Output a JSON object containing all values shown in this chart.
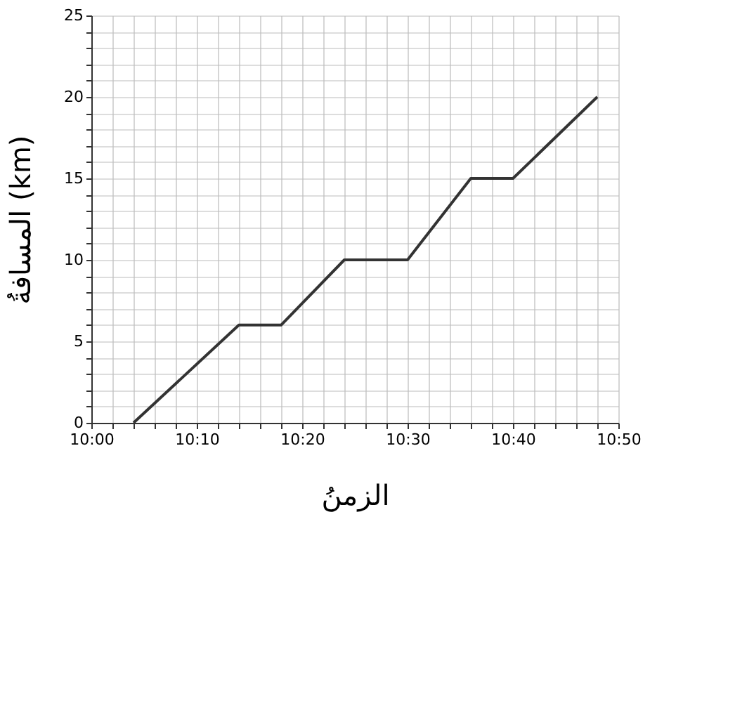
{
  "chart_data": {
    "type": "line",
    "xlabel": "الزمنُ",
    "ylabel": "المسافةُ (km)",
    "x": [
      10.0667,
      10.2333,
      10.3,
      10.4,
      10.5,
      10.6,
      10.6667,
      10.8
    ],
    "series": [
      {
        "color": "#333333",
        "values": [
          0,
          6,
          6,
          10,
          10,
          15,
          15,
          20
        ]
      }
    ],
    "xlim": [
      10,
      10.8333
    ],
    "ylim": [
      0,
      25
    ],
    "xticks": [
      {
        "value": 10,
        "label": "10:00"
      },
      {
        "value": 10.0333,
        "label": null
      },
      {
        "value": 10.0667,
        "label": null
      },
      {
        "value": 10.1,
        "label": null
      },
      {
        "value": 10.1333,
        "label": null
      },
      {
        "value": 10.1667,
        "label": "10:10"
      },
      {
        "value": 10.2,
        "label": null
      },
      {
        "value": 10.2333,
        "label": null
      },
      {
        "value": 10.2667,
        "label": null
      },
      {
        "value": 10.3,
        "label": null
      },
      {
        "value": 10.3333,
        "label": "10:20"
      },
      {
        "value": 10.3667,
        "label": null
      },
      {
        "value": 10.4,
        "label": null
      },
      {
        "value": 10.4333,
        "label": null
      },
      {
        "value": 10.4667,
        "label": null
      },
      {
        "value": 10.5,
        "label": "10:30"
      },
      {
        "value": 10.5333,
        "label": null
      },
      {
        "value": 10.5667,
        "label": null
      },
      {
        "value": 10.6,
        "label": null
      },
      {
        "value": 10.6333,
        "label": null
      },
      {
        "value": 10.6667,
        "label": "10:40"
      },
      {
        "value": 10.7,
        "label": null
      },
      {
        "value": 10.7333,
        "label": null
      },
      {
        "value": 10.7667,
        "label": null
      },
      {
        "value": 10.8,
        "label": null
      },
      {
        "value": 10.8333,
        "label": "10:50"
      }
    ],
    "yticks": [
      0,
      {
        "value": 1,
        "label": null
      },
      {
        "value": 2,
        "label": null
      },
      {
        "value": 3,
        "label": null
      },
      {
        "value": 4,
        "label": null
      },
      5,
      {
        "value": 6,
        "label": null
      },
      {
        "value": 7,
        "label": null
      },
      {
        "value": 8,
        "label": null
      },
      {
        "value": 9,
        "label": null
      },
      10,
      {
        "value": 11,
        "label": null
      },
      {
        "value": 12,
        "label": null
      },
      {
        "value": 13,
        "label": null
      },
      {
        "value": 14,
        "label": null
      },
      15,
      {
        "value": 16,
        "label": null
      },
      {
        "value": 17,
        "label": null
      },
      {
        "value": 18,
        "label": null
      },
      {
        "value": 19,
        "label": null
      },
      20,
      {
        "value": 21,
        "label": null
      },
      {
        "value": 22,
        "label": null
      },
      {
        "value": 23,
        "label": null
      },
      {
        "value": 24,
        "label": null
      },
      25
    ],
    "grid": true,
    "marker": "none",
    "line_style": "solid"
  }
}
